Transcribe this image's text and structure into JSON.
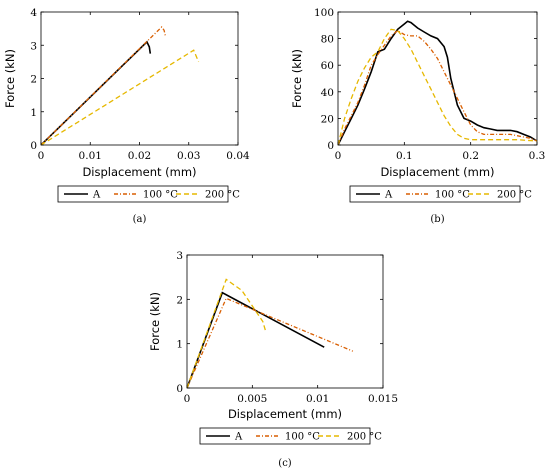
{
  "chart_data": [
    {
      "type": "line",
      "caption": "(a)",
      "xlabel": "Displacement (mm)",
      "ylabel": "Force (kN)",
      "xlim": [
        0,
        0.04
      ],
      "ylim": [
        0,
        4
      ],
      "xticks": [
        "0",
        "0.01",
        "0.02",
        "0.03",
        "0.04"
      ],
      "yticks": [
        "0",
        "1",
        "2",
        "3",
        "4"
      ],
      "grid": false,
      "legend_position": "below",
      "series": [
        {
          "name": "A",
          "color": "#000000",
          "style": "solid",
          "x": [
            0,
            0.0215,
            0.022,
            0.0222
          ],
          "y": [
            0,
            3.1,
            2.95,
            2.75
          ]
        },
        {
          "name": "100 °C",
          "color": "#d95f02",
          "style": "dashdot",
          "x": [
            0,
            0.0245,
            0.025,
            0.0253
          ],
          "y": [
            0,
            3.55,
            3.45,
            3.25
          ]
        },
        {
          "name": "200 °C",
          "color": "#e6b800",
          "style": "dashed",
          "x": [
            0,
            0.031,
            0.032
          ],
          "y": [
            0,
            2.85,
            2.5
          ]
        }
      ]
    },
    {
      "type": "line",
      "caption": "(b)",
      "xlabel": "Displacement (mm)",
      "ylabel": "Force (kN)",
      "xlim": [
        0,
        0.3
      ],
      "ylim": [
        0,
        100
      ],
      "xticks": [
        "0",
        "0.1",
        "0.2",
        "0.3"
      ],
      "yticks": [
        "0",
        "20",
        "40",
        "60",
        "80",
        "100"
      ],
      "grid": false,
      "legend_position": "below",
      "series": [
        {
          "name": "A",
          "color": "#000000",
          "style": "solid",
          "x": [
            0,
            0.01,
            0.02,
            0.03,
            0.04,
            0.05,
            0.06,
            0.07,
            0.08,
            0.09,
            0.1,
            0.105,
            0.11,
            0.12,
            0.13,
            0.14,
            0.15,
            0.16,
            0.165,
            0.17,
            0.18,
            0.19,
            0.2,
            0.21,
            0.22,
            0.23,
            0.24,
            0.25,
            0.26,
            0.27,
            0.28,
            0.29,
            0.3
          ],
          "y": [
            0,
            10,
            20,
            30,
            42,
            55,
            70,
            72,
            80,
            87,
            91,
            93,
            92,
            88,
            85,
            82,
            80,
            74,
            66,
            50,
            30,
            20,
            18,
            15,
            13,
            12,
            11,
            11,
            11,
            10,
            8,
            6,
            3
          ]
        },
        {
          "name": "100 °C",
          "color": "#d95f02",
          "style": "dashdot",
          "x": [
            0,
            0.01,
            0.02,
            0.03,
            0.04,
            0.05,
            0.06,
            0.07,
            0.08,
            0.09,
            0.1,
            0.11,
            0.12,
            0.13,
            0.14,
            0.15,
            0.16,
            0.17,
            0.18,
            0.19,
            0.2,
            0.21,
            0.22,
            0.23,
            0.24,
            0.25,
            0.26,
            0.27,
            0.28,
            0.29,
            0.3
          ],
          "y": [
            0,
            12,
            22,
            32,
            45,
            60,
            68,
            75,
            82,
            86,
            83,
            82,
            82,
            78,
            72,
            65,
            55,
            45,
            35,
            25,
            15,
            10,
            8,
            8,
            8,
            8,
            8,
            7,
            6,
            5,
            3
          ]
        },
        {
          "name": "200 °C",
          "color": "#e6b800",
          "style": "dashed",
          "x": [
            0,
            0.01,
            0.02,
            0.03,
            0.04,
            0.05,
            0.06,
            0.07,
            0.08,
            0.09,
            0.1,
            0.11,
            0.12,
            0.13,
            0.14,
            0.15,
            0.16,
            0.17,
            0.18,
            0.19,
            0.2,
            0.22,
            0.25,
            0.27,
            0.3
          ],
          "y": [
            0,
            20,
            35,
            48,
            58,
            66,
            70,
            80,
            87,
            86,
            80,
            72,
            62,
            52,
            42,
            32,
            22,
            14,
            8,
            5,
            4,
            4,
            4,
            4,
            3
          ]
        }
      ]
    },
    {
      "type": "line",
      "caption": "(c)",
      "xlabel": "Displacement (mm)",
      "ylabel": "Force (kN)",
      "xlim": [
        0,
        0.015
      ],
      "ylim": [
        0,
        3
      ],
      "xticks": [
        "0",
        "0.005",
        "0.01",
        "0.015"
      ],
      "yticks": [
        "0",
        "1",
        "2",
        "3"
      ],
      "grid": false,
      "legend_position": "below",
      "series": [
        {
          "name": "A",
          "color": "#000000",
          "style": "solid",
          "x": [
            0,
            0.0027,
            0.0105
          ],
          "y": [
            0,
            2.15,
            0.92
          ]
        },
        {
          "name": "100 °C",
          "color": "#d95f02",
          "style": "dashdot",
          "x": [
            0,
            0.003,
            0.0127
          ],
          "y": [
            0,
            2.02,
            0.83
          ]
        },
        {
          "name": "200 °C",
          "color": "#e6b800",
          "style": "dashed",
          "x": [
            0,
            0.003,
            0.0042,
            0.0058,
            0.006
          ],
          "y": [
            0,
            2.45,
            2.2,
            1.5,
            1.3
          ]
        }
      ]
    }
  ],
  "legend_labels": [
    "A",
    "100 °C",
    "200 °C"
  ]
}
